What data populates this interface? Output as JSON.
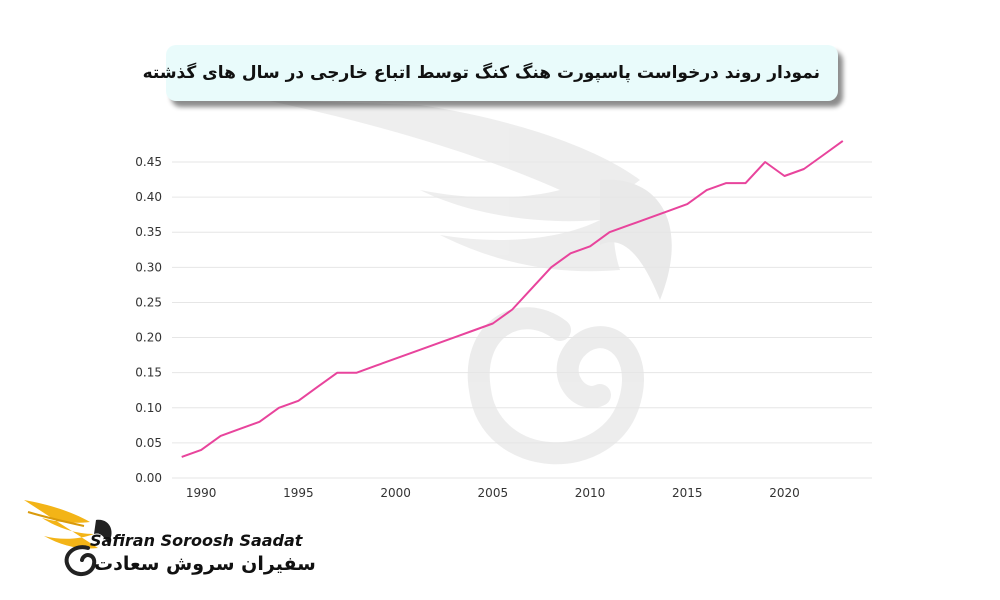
{
  "title": "نمودار روند درخواست پاسپورت هنگ کنگ توسط اتباع خارجی در سال های گذشته",
  "branding": {
    "name_en": "Safiran Soroosh Saadat",
    "name_fa": "سفیران سروش سعادت",
    "logo_icon": "swan-wing-logo-icon",
    "watermark_icon": "swan-watermark-icon"
  },
  "chart_data": {
    "type": "line",
    "title": "نمودار روند درخواست پاسپورت هنگ کنگ توسط اتباع خارجی در سال های گذشته",
    "xlabel": "",
    "ylabel": "",
    "xlim": [
      1988.5,
      2024.5
    ],
    "ylim": [
      0,
      0.5
    ],
    "x_ticks": [
      "1990",
      "1995",
      "2000",
      "2005",
      "2010",
      "2015",
      "2020"
    ],
    "y_ticks": [
      "0.00",
      "0.05",
      "0.10",
      "0.15",
      "0.20",
      "0.25",
      "0.30",
      "0.35",
      "0.40",
      "0.45"
    ],
    "grid": "horizontal",
    "color": "#e8449c",
    "series": [
      {
        "x": [
          1989,
          1990,
          1991,
          1992,
          1993,
          1994,
          1995,
          1996,
          1997,
          1998,
          1999,
          2000,
          2001,
          2002,
          2003,
          2004,
          2005,
          2006,
          2007,
          2008,
          2009,
          2010,
          2011,
          2012,
          2013,
          2014,
          2015,
          2016,
          2017,
          2018,
          2019,
          2020,
          2021,
          2022,
          2023
        ],
        "values": [
          0.03,
          0.04,
          0.06,
          0.07,
          0.08,
          0.1,
          0.11,
          0.13,
          0.15,
          0.15,
          0.16,
          0.17,
          0.18,
          0.19,
          0.2,
          0.21,
          0.22,
          0.24,
          0.27,
          0.3,
          0.32,
          0.33,
          0.35,
          0.36,
          0.37,
          0.38,
          0.39,
          0.41,
          0.42,
          0.42,
          0.45,
          0.43,
          0.44,
          0.46,
          0.48
        ]
      }
    ]
  }
}
